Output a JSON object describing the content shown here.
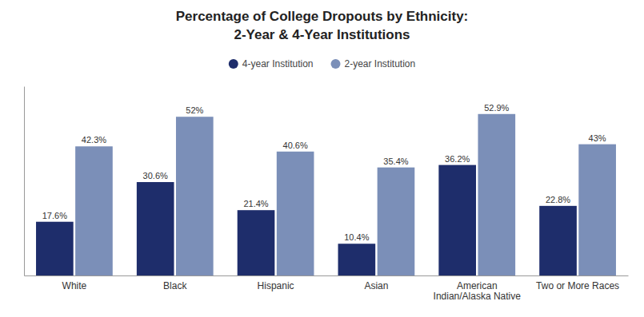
{
  "chart_data": {
    "type": "bar",
    "title": "Percentage of College Dropouts by Ethnicity:",
    "subtitle": "2-Year & 4-Year Institutions",
    "categories": [
      "White",
      "Black",
      "Hispanic",
      "Asian",
      "American\nIndian/Alaska Native",
      "Two or More Races"
    ],
    "series": [
      {
        "name": "4-year Institution",
        "color": "#1e2d6b",
        "values": [
          17.6,
          30.6,
          21.4,
          10.4,
          36.2,
          22.8
        ],
        "value_labels": [
          "17.6%",
          "30.6%",
          "21.4%",
          "10.4%",
          "36.2%",
          "22.8%"
        ]
      },
      {
        "name": "2-year Institution",
        "color": "#7b8fb8",
        "values": [
          42.3,
          52.0,
          40.6,
          35.4,
          52.9,
          43.0
        ],
        "value_labels": [
          "42.3%",
          "52%",
          "40.6%",
          "35.4%",
          "52.9%",
          "43%"
        ]
      }
    ],
    "ylim": [
      0,
      62
    ],
    "yticks": [],
    "grid": false,
    "legend": "top",
    "data_labels": true,
    "tick_labels": "x"
  }
}
